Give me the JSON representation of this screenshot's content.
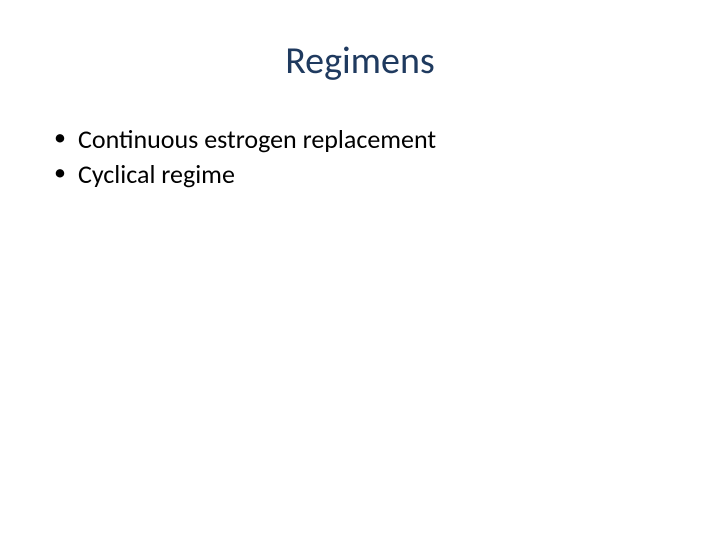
{
  "slide": {
    "title": "Regimens",
    "title_color": "#1f3a5f",
    "title_fontsize": 38,
    "background_color": "#ffffff",
    "bullets": [
      {
        "text": "Continuous estrogen replacement"
      },
      {
        "text": "Cyclical regime"
      }
    ],
    "bullet_color": "#000000",
    "bullet_fontsize": 26
  }
}
